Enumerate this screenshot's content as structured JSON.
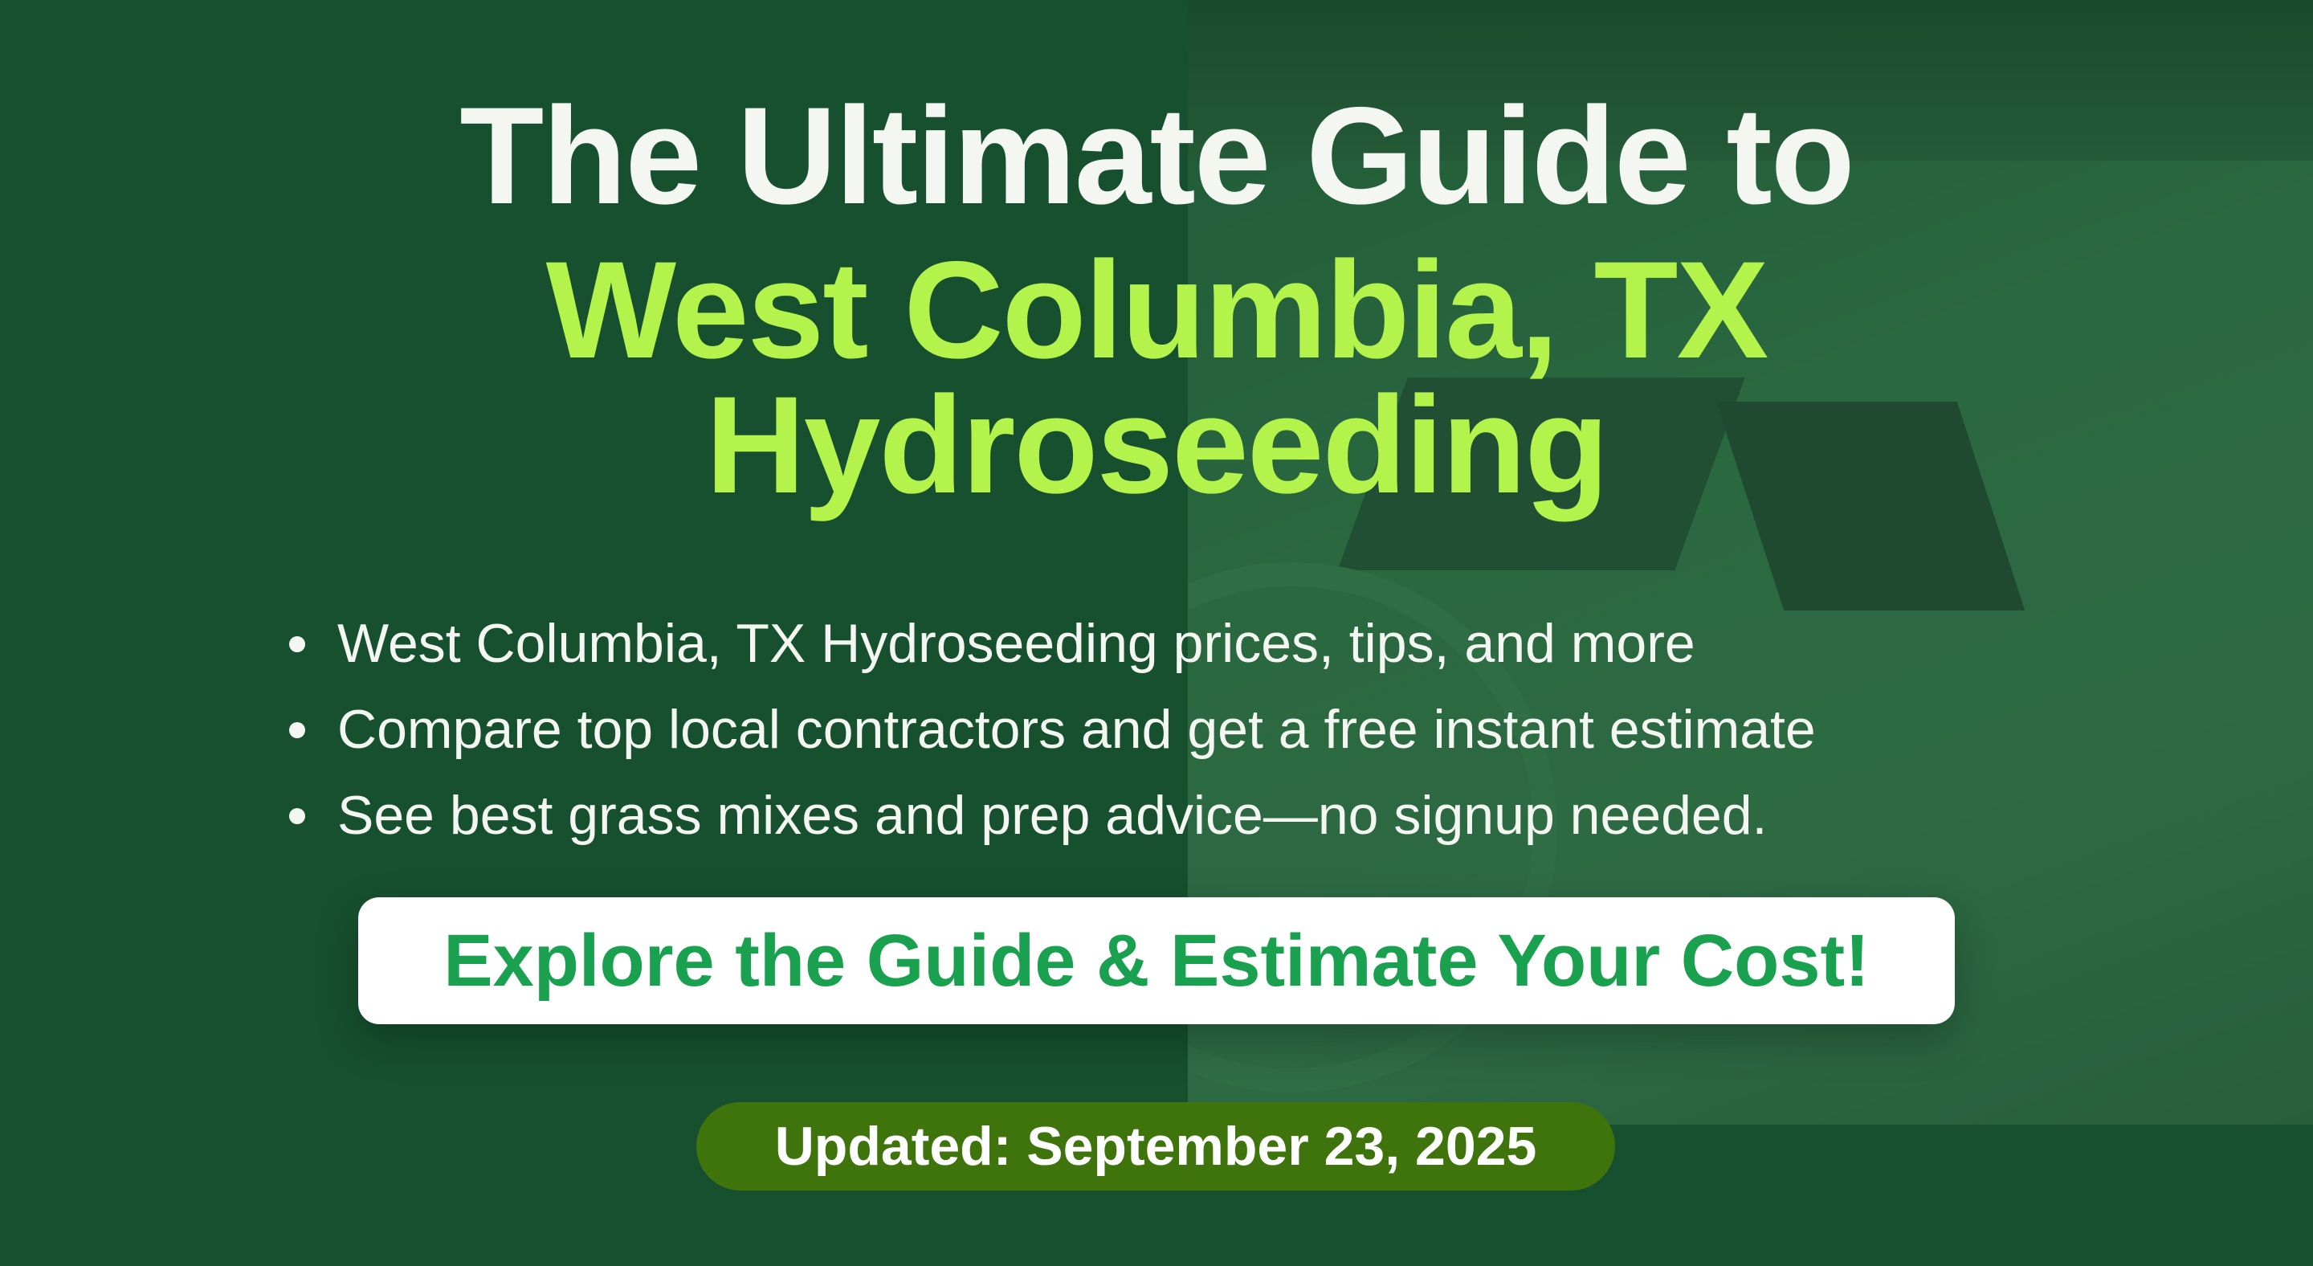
{
  "headline": {
    "line1": "The Ultimate Guide to",
    "line2": "West Columbia, TX",
    "line3": "Hydroseeding"
  },
  "bullets": [
    "West Columbia, TX Hydroseeding prices, tips, and more",
    "Compare top local contractors and get a free instant estimate",
    "See best grass mixes and prep advice—no signup needed."
  ],
  "cta": {
    "label": "Explore the Guide & Estimate Your Cost!"
  },
  "badge": {
    "label": "Updated: September 23, 2025"
  },
  "colors": {
    "background": "#16502e",
    "accent": "#b4f24c",
    "cta_text": "#1aa150",
    "badge": "#3f730b"
  }
}
